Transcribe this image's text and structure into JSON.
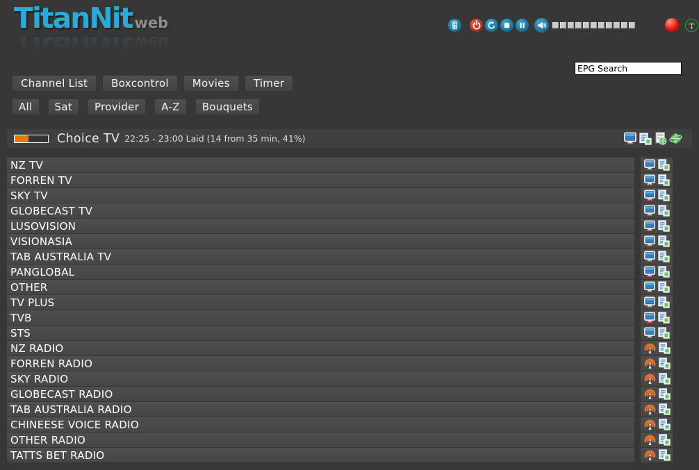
{
  "app": {
    "name": "TitanNit",
    "name_suffix": "web"
  },
  "header": {
    "controls": {
      "icons": [
        "remote-icon",
        "power-icon",
        "refresh-icon",
        "stop-icon",
        "pause-icon",
        "volume-icon",
        "record-icon",
        "signal-icon"
      ]
    },
    "volume": {
      "segments": 11,
      "level": 0
    },
    "epg_search": {
      "value": "EPG Search"
    }
  },
  "nav": {
    "main_tabs": [
      {
        "label": "Channel List"
      },
      {
        "label": "Boxcontrol"
      },
      {
        "label": "Movies"
      },
      {
        "label": "Timer"
      }
    ],
    "filter_tabs": [
      {
        "label": "All"
      },
      {
        "label": "Sat"
      },
      {
        "label": "Provider"
      },
      {
        "label": "A-Z"
      },
      {
        "label": "Bouquets"
      }
    ]
  },
  "now_playing": {
    "channel_name": "Choice TV",
    "epg_text": "22:25 - 23:00 Laid (14 from 35 min, 41%)",
    "progress_percent": 41,
    "icons": [
      "stream-tv-icon",
      "epg-list-icon",
      "webtv-page-icon",
      "web-interface-icon"
    ]
  },
  "channel_list": [
    {
      "name": "NZ TV",
      "type": "tv"
    },
    {
      "name": "FORREN TV",
      "type": "tv"
    },
    {
      "name": "SKY TV",
      "type": "tv"
    },
    {
      "name": "GLOBECAST TV",
      "type": "tv"
    },
    {
      "name": "LUSOVISION",
      "type": "tv"
    },
    {
      "name": "VISIONASIA",
      "type": "tv"
    },
    {
      "name": "TAB AUSTRALIA TV",
      "type": "tv"
    },
    {
      "name": "PANGLOBAL",
      "type": "tv"
    },
    {
      "name": "OTHER",
      "type": "tv"
    },
    {
      "name": "TV PLUS",
      "type": "tv"
    },
    {
      "name": "TVB",
      "type": "tv"
    },
    {
      "name": "STS",
      "type": "tv"
    },
    {
      "name": "NZ RADIO",
      "type": "radio"
    },
    {
      "name": "FORREN RADIO",
      "type": "radio"
    },
    {
      "name": "SKY RADIO",
      "type": "radio"
    },
    {
      "name": "GLOBECAST RADIO",
      "type": "radio"
    },
    {
      "name": "TAB AUSTRALIA RADIO",
      "type": "radio"
    },
    {
      "name": "CHINEESE VOICE RADIO",
      "type": "radio"
    },
    {
      "name": "OTHER RADIO",
      "type": "radio"
    },
    {
      "name": "TATTS BET RADIO",
      "type": "radio"
    }
  ],
  "colors": {
    "background": "#373737",
    "row_background": "#4a4a4a",
    "accent_cyan": "#2BA9D8",
    "accent_orange": "#E07C0E",
    "icon_blue": "#1D7FA8",
    "power_red": "#B5301B",
    "record_red": "#E5180C",
    "signal_green": "#2F9A35"
  }
}
